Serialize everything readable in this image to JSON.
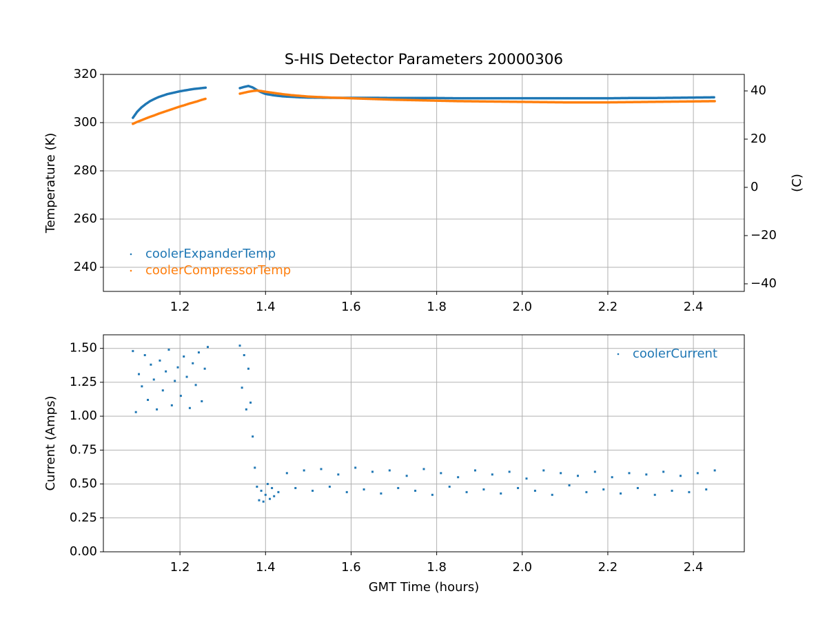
{
  "chart_data": [
    {
      "type": "line",
      "title": "S-HIS Detector Parameters 20000306",
      "ylabel": "Temperature (K)",
      "y2label": "(C)",
      "x": [
        1.09,
        1.1,
        1.11,
        1.12,
        1.13,
        1.14,
        1.15,
        1.16,
        1.17,
        1.18,
        1.19,
        1.2,
        1.21,
        1.22,
        1.23,
        1.24,
        1.25,
        1.26,
        1.3,
        1.34,
        1.35,
        1.36,
        1.37,
        1.38,
        1.39,
        1.4,
        1.42,
        1.44,
        1.46,
        1.48,
        1.5,
        1.55,
        1.6,
        1.65,
        1.7,
        1.75,
        1.8,
        1.85,
        1.9,
        1.95,
        2.0,
        2.05,
        2.1,
        2.15,
        2.2,
        2.25,
        2.3,
        2.35,
        2.4,
        2.45
      ],
      "series": [
        {
          "name": "coolerExpanderTemp",
          "color": "#1f77b4",
          "values": [
            302.0,
            304.5,
            306.3,
            307.7,
            308.9,
            309.8,
            310.6,
            311.2,
            311.8,
            312.2,
            312.6,
            313.0,
            313.3,
            313.6,
            313.9,
            314.1,
            314.3,
            314.5,
            null,
            314.3,
            314.8,
            315.2,
            314.6,
            313.5,
            312.6,
            311.9,
            311.3,
            310.9,
            310.7,
            310.5,
            310.4,
            310.3,
            310.3,
            310.3,
            310.2,
            310.2,
            310.2,
            310.1,
            310.1,
            310.1,
            310.1,
            310.1,
            310.1,
            310.1,
            310.1,
            310.2,
            310.2,
            310.3,
            310.4,
            310.5
          ]
        },
        {
          "name": "coolerCompressorTemp",
          "color": "#ff7f0e",
          "values": [
            299.5,
            300.3,
            301.0,
            301.7,
            302.4,
            303.0,
            303.7,
            304.3,
            304.9,
            305.5,
            306.1,
            306.7,
            307.2,
            307.8,
            308.3,
            308.8,
            309.4,
            309.9,
            null,
            312.0,
            312.4,
            312.8,
            313.1,
            313.3,
            313.1,
            312.8,
            312.3,
            311.8,
            311.4,
            311.1,
            310.8,
            310.4,
            310.1,
            309.8,
            309.5,
            309.3,
            309.1,
            308.9,
            308.8,
            308.7,
            308.6,
            308.5,
            308.4,
            308.4,
            308.4,
            308.5,
            308.6,
            308.7,
            308.8,
            308.9
          ]
        }
      ],
      "xlim": [
        1.021,
        2.519
      ],
      "xticks": [
        1.2,
        1.4,
        1.6,
        1.8,
        {
          "value": 2.0,
          "label": "2.0"
        },
        2.2,
        2.4
      ],
      "ylim": [
        230,
        320
      ],
      "yticks": [
        240,
        260,
        280,
        300,
        320
      ],
      "y2lim": [
        -43.15,
        46.85
      ],
      "y2ticks": [
        {
          "value": -40,
          "label": "−40"
        },
        {
          "value": -20,
          "label": "−20"
        },
        0,
        20,
        40
      ],
      "grid": true,
      "legend": "lower left"
    },
    {
      "type": "scatter",
      "xlabel": "GMT Time (hours)",
      "ylabel": "Current (Amps)",
      "x": [
        1.09,
        1.097,
        1.104,
        1.111,
        1.118,
        1.125,
        1.132,
        1.139,
        1.146,
        1.153,
        1.16,
        1.167,
        1.174,
        1.181,
        1.188,
        1.195,
        1.202,
        1.209,
        1.216,
        1.223,
        1.23,
        1.237,
        1.244,
        1.251,
        1.258,
        1.265,
        1.34,
        1.345,
        1.35,
        1.355,
        1.36,
        1.365,
        1.37,
        1.375,
        1.38,
        1.385,
        1.39,
        1.395,
        1.4,
        1.405,
        1.41,
        1.415,
        1.42,
        1.43,
        1.45,
        1.47,
        1.49,
        1.51,
        1.53,
        1.55,
        1.57,
        1.59,
        1.61,
        1.63,
        1.65,
        1.67,
        1.69,
        1.71,
        1.73,
        1.75,
        1.77,
        1.79,
        1.81,
        1.83,
        1.85,
        1.87,
        1.89,
        1.91,
        1.93,
        1.95,
        1.97,
        1.99,
        2.01,
        2.03,
        2.05,
        2.07,
        2.09,
        2.11,
        2.13,
        2.15,
        2.17,
        2.19,
        2.21,
        2.23,
        2.25,
        2.27,
        2.29,
        2.31,
        2.33,
        2.35,
        2.37,
        2.39,
        2.41,
        2.43,
        2.45
      ],
      "series": [
        {
          "name": "coolerCurrent",
          "color": "#1f77b4",
          "values": [
            1.48,
            1.03,
            1.31,
            1.22,
            1.45,
            1.12,
            1.38,
            1.27,
            1.05,
            1.41,
            1.19,
            1.33,
            1.49,
            1.08,
            1.26,
            1.36,
            1.15,
            1.44,
            1.29,
            1.06,
            1.39,
            1.23,
            1.47,
            1.11,
            1.35,
            1.51,
            1.52,
            1.21,
            1.45,
            1.05,
            1.35,
            1.1,
            0.85,
            0.62,
            0.48,
            0.38,
            0.45,
            0.37,
            0.42,
            0.5,
            0.39,
            0.47,
            0.41,
            0.44,
            0.58,
            0.47,
            0.6,
            0.45,
            0.61,
            0.48,
            0.57,
            0.44,
            0.62,
            0.46,
            0.59,
            0.43,
            0.6,
            0.47,
            0.56,
            0.45,
            0.61,
            0.42,
            0.58,
            0.48,
            0.55,
            0.44,
            0.6,
            0.46,
            0.57,
            0.43,
            0.59,
            0.47,
            0.54,
            0.45,
            0.6,
            0.42,
            0.58,
            0.49,
            0.56,
            0.44,
            0.59,
            0.46,
            0.55,
            0.43,
            0.58,
            0.47,
            0.57,
            0.42,
            0.59,
            0.45,
            0.56,
            0.44,
            0.58,
            0.46,
            0.6
          ]
        }
      ],
      "xlim": [
        1.021,
        2.519
      ],
      "xticks": [
        1.2,
        1.4,
        1.6,
        1.8,
        {
          "value": 2.0,
          "label": "2.0"
        },
        2.2,
        2.4
      ],
      "ylim": [
        0,
        1.6
      ],
      "yticks": [
        {
          "value": 0,
          "label": "0.00"
        },
        0.25,
        {
          "value": 0.5,
          "label": "0.50"
        },
        0.75,
        {
          "value": 1,
          "label": "1.00"
        },
        1.25,
        {
          "value": 1.5,
          "label": "1.50"
        }
      ],
      "grid": true,
      "legend": "upper right"
    }
  ]
}
